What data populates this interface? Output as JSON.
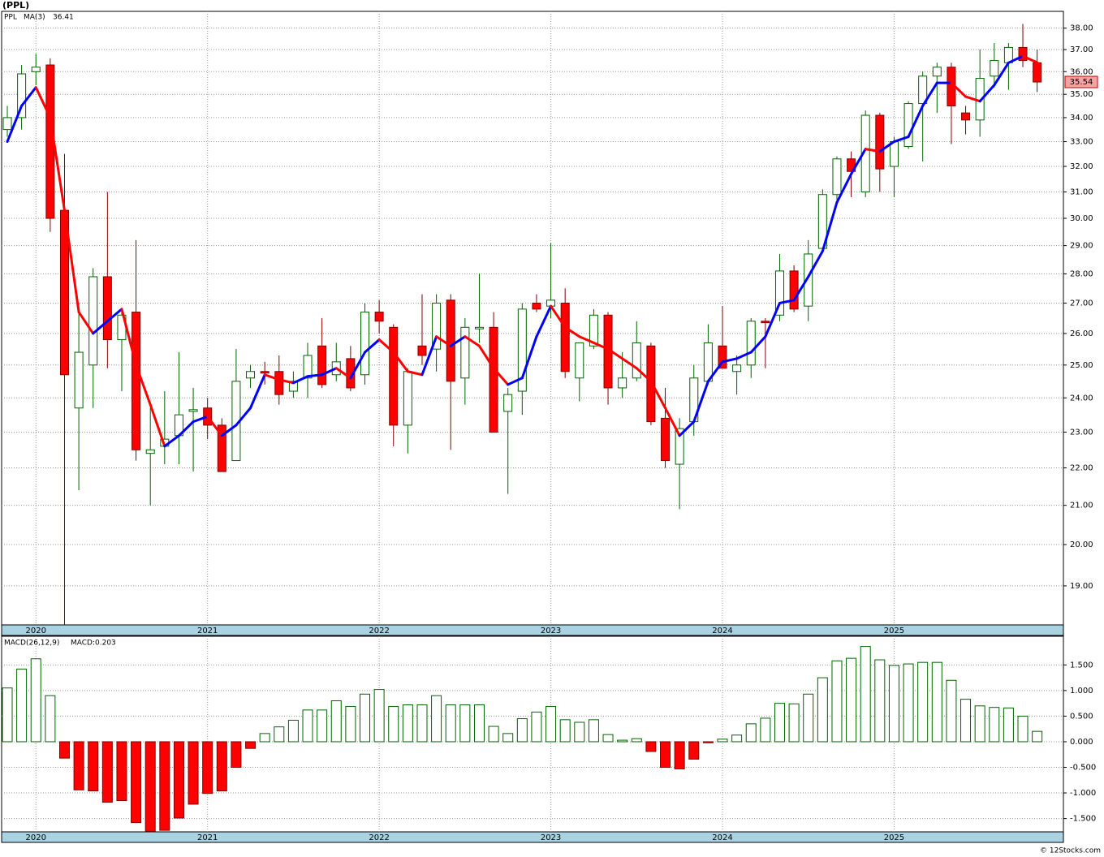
{
  "chart_data": [
    {
      "type": "candlestick",
      "title": "(PPL)",
      "symbol": "PPL",
      "categories": [
        null,
        null,
        "2020",
        null,
        null,
        null,
        null,
        null,
        null,
        null,
        null,
        null,
        null,
        null,
        "2021",
        null,
        null,
        null,
        null,
        null,
        null,
        null,
        null,
        null,
        null,
        null,
        "2022",
        null,
        null,
        null,
        null,
        null,
        null,
        null,
        null,
        null,
        null,
        null,
        "2023",
        null,
        null,
        null,
        null,
        null,
        null,
        null,
        null,
        null,
        null,
        null,
        "2024",
        null,
        null,
        null,
        null,
        null,
        null,
        null,
        null,
        null,
        null,
        null,
        "2025",
        null,
        null,
        null,
        null,
        null,
        null,
        null,
        null,
        null,
        null
      ],
      "open": [
        33.5,
        34.0,
        36.0,
        36.3,
        30.3,
        23.7,
        25.0,
        27.9,
        25.8,
        26.7,
        22.4,
        22.6,
        22.9,
        23.6,
        23.7,
        23.2,
        22.2,
        24.6,
        24.8,
        24.8,
        24.2,
        24.6,
        25.6,
        24.7,
        25.2,
        24.7,
        26.7,
        26.2,
        23.2,
        25.6,
        25.5,
        27.1,
        24.6,
        26.15,
        26.2,
        23.6,
        24.2,
        27.0,
        26.9,
        27.0,
        24.6,
        25.6,
        26.6,
        24.3,
        24.6,
        25.6,
        23.4,
        22.1,
        23.3,
        24.5,
        25.6,
        24.8,
        25.0,
        26.4,
        26.6,
        28.1,
        26.9,
        28.9,
        30.9,
        32.3,
        31.0,
        34.1,
        32.0,
        32.8,
        34.6,
        35.8,
        36.2,
        34.2,
        33.9,
        35.8,
        36.4,
        37.1,
        36.4
      ],
      "high": [
        34.5,
        36.3,
        36.8,
        36.6,
        32.5,
        27.0,
        28.2,
        31.0,
        26.8,
        29.2,
        23.7,
        24.2,
        25.4,
        24.3,
        24.0,
        23.4,
        25.5,
        25.0,
        25.1,
        25.3,
        24.8,
        25.7,
        26.5,
        25.7,
        25.6,
        27.0,
        27.1,
        26.3,
        24.9,
        27.3,
        27.3,
        27.3,
        26.5,
        28.0,
        26.7,
        24.3,
        27.0,
        27.3,
        29.1,
        27.5,
        25.7,
        26.8,
        26.7,
        25.4,
        26.4,
        25.7,
        24.3,
        23.4,
        25.0,
        26.3,
        26.9,
        25.3,
        26.5,
        26.5,
        28.7,
        28.3,
        29.2,
        31.1,
        32.4,
        32.6,
        34.3,
        34.2,
        33.2,
        34.7,
        36.0,
        36.4,
        36.4,
        34.5,
        37.0,
        37.3,
        37.3,
        38.2,
        37.0
      ],
      "low": [
        33.2,
        33.5,
        35.4,
        29.5,
        18.1,
        21.4,
        23.7,
        24.9,
        24.2,
        22.2,
        21.0,
        22.1,
        22.1,
        21.9,
        22.8,
        21.9,
        22.2,
        24.3,
        24.4,
        23.8,
        24.0,
        24.0,
        24.3,
        24.5,
        24.2,
        24.4,
        26.0,
        22.6,
        22.4,
        25.0,
        24.8,
        22.5,
        23.8,
        25.7,
        23.0,
        21.3,
        23.5,
        26.7,
        26.5,
        24.6,
        23.9,
        25.5,
        23.8,
        24.0,
        24.5,
        23.2,
        22.0,
        20.9,
        22.9,
        24.4,
        24.9,
        24.1,
        24.6,
        24.9,
        26.4,
        26.7,
        26.4,
        28.8,
        30.7,
        30.8,
        30.8,
        31.0,
        30.8,
        32.7,
        32.2,
        34.2,
        32.9,
        33.3,
        33.2,
        35.3,
        35.2,
        36.2,
        35.1
      ],
      "close": [
        34.0,
        35.9,
        36.2,
        30.0,
        24.7,
        25.4,
        27.9,
        25.8,
        26.6,
        22.5,
        22.5,
        22.8,
        23.5,
        23.65,
        23.2,
        21.9,
        24.5,
        24.8,
        24.75,
        24.1,
        24.5,
        25.3,
        24.4,
        25.1,
        24.3,
        26.7,
        26.4,
        23.2,
        24.8,
        25.3,
        27.0,
        24.5,
        26.2,
        26.2,
        23.0,
        24.1,
        26.8,
        26.8,
        27.1,
        24.8,
        25.7,
        26.6,
        24.3,
        24.6,
        25.7,
        23.3,
        22.2,
        23.1,
        24.6,
        25.7,
        24.9,
        25.0,
        26.4,
        26.35,
        28.1,
        26.8,
        28.7,
        30.9,
        32.3,
        31.8,
        34.1,
        31.9,
        33.0,
        34.6,
        35.8,
        36.2,
        34.5,
        33.9,
        35.7,
        36.5,
        37.1,
        36.5,
        35.54
      ],
      "up_color": "#006400",
      "down_color": "#ff0000",
      "ma": {
        "name": "MA(3)",
        "rising_color": "#0000ff",
        "falling_color": "#ff0000",
        "values": [
          33.0,
          34.5,
          35.3,
          34.0,
          30.3,
          26.7,
          26.0,
          26.4,
          26.8,
          25.0,
          23.8,
          22.6,
          22.9,
          23.3,
          23.45,
          22.9,
          23.2,
          23.7,
          24.7,
          24.55,
          24.45,
          24.65,
          24.7,
          24.9,
          24.6,
          25.4,
          25.8,
          25.4,
          24.8,
          24.7,
          25.9,
          25.6,
          25.9,
          25.6,
          24.9,
          24.4,
          24.6,
          25.9,
          26.9,
          26.2,
          25.9,
          25.7,
          25.5,
          25.2,
          24.9,
          24.5,
          23.7,
          22.9,
          23.3,
          24.5,
          25.1,
          25.2,
          25.4,
          25.9,
          27.0,
          27.1,
          27.9,
          28.8,
          30.6,
          31.7,
          32.7,
          32.6,
          33.0,
          33.2,
          34.5,
          35.5,
          35.5,
          34.9,
          34.7,
          35.4,
          36.4,
          36.7,
          36.41
        ]
      },
      "ylim": [
        18.1,
        38.8
      ],
      "log_scale": true,
      "grid": true,
      "yticks": [
        {
          "value": 19,
          "label": "19.00"
        },
        {
          "value": 20,
          "label": "20.00"
        },
        {
          "value": 21,
          "label": "21.00"
        },
        {
          "value": 22,
          "label": "22.00"
        },
        {
          "value": 23,
          "label": "23.00"
        },
        {
          "value": 24,
          "label": "24.00"
        },
        {
          "value": 25,
          "label": "25.00"
        },
        {
          "value": 26,
          "label": "26.00"
        },
        {
          "value": 27,
          "label": "27.00"
        },
        {
          "value": 28,
          "label": "28.00"
        },
        {
          "value": 29,
          "label": "29.00"
        },
        {
          "value": 30,
          "label": "30.00"
        },
        {
          "value": 31,
          "label": "31.00"
        },
        {
          "value": 32,
          "label": "32.00"
        },
        {
          "value": 33,
          "label": "33.00"
        },
        {
          "value": 34,
          "label": "34.00"
        },
        {
          "value": 35,
          "label": "35.00"
        },
        {
          "value": 36,
          "label": "36.00"
        },
        {
          "value": 37,
          "label": "37.00"
        },
        {
          "value": 38,
          "label": "38.00"
        }
      ]
    },
    {
      "type": "bar",
      "title": "MACD(26,12,9)",
      "value_prefix": "MACD:",
      "categories": [
        null,
        null,
        "2020",
        null,
        null,
        null,
        null,
        null,
        null,
        null,
        null,
        null,
        null,
        null,
        "2021",
        null,
        null,
        null,
        null,
        null,
        null,
        null,
        null,
        null,
        null,
        null,
        "2022",
        null,
        null,
        null,
        null,
        null,
        null,
        null,
        null,
        null,
        null,
        null,
        "2023",
        null,
        null,
        null,
        null,
        null,
        null,
        null,
        null,
        null,
        null,
        null,
        "2024",
        null,
        null,
        null,
        null,
        null,
        null,
        null,
        null,
        null,
        null,
        null,
        "2025",
        null,
        null,
        null,
        null,
        null,
        null,
        null,
        null,
        null,
        null
      ],
      "values": [
        1.05,
        1.42,
        1.62,
        0.9,
        -0.32,
        -0.94,
        -0.96,
        -1.18,
        -1.15,
        -1.58,
        -1.75,
        -1.73,
        -1.49,
        -1.22,
        -1.01,
        -0.96,
        -0.5,
        -0.13,
        0.16,
        0.29,
        0.42,
        0.62,
        0.62,
        0.8,
        0.69,
        0.93,
        1.02,
        0.69,
        0.72,
        0.72,
        0.9,
        0.72,
        0.72,
        0.72,
        0.3,
        0.16,
        0.45,
        0.58,
        0.69,
        0.43,
        0.38,
        0.43,
        0.14,
        0.03,
        0.06,
        -0.19,
        -0.5,
        -0.53,
        -0.34,
        -0.02,
        0.05,
        0.13,
        0.35,
        0.46,
        0.75,
        0.74,
        0.93,
        1.25,
        1.58,
        1.63,
        1.86,
        1.6,
        1.49,
        1.52,
        1.55,
        1.55,
        1.2,
        0.83,
        0.7,
        0.67,
        0.66,
        0.5,
        0.203
      ],
      "positive_color": "#006400",
      "negative_color": "#ff0000",
      "ylim": [
        -1.76,
        2.06
      ],
      "grid": true,
      "yticks": [
        {
          "value": -1.5,
          "label": "-1.500"
        },
        {
          "value": -1,
          "label": "-1.000"
        },
        {
          "value": -0.5,
          "label": "-0.500"
        },
        {
          "value": 0,
          "label": "0.000"
        },
        {
          "value": 0.5,
          "label": "0.500"
        },
        {
          "value": 1,
          "label": "1.000"
        },
        {
          "value": 1.5,
          "label": "1.500"
        }
      ]
    }
  ],
  "footer": "© 12Stocks.com"
}
